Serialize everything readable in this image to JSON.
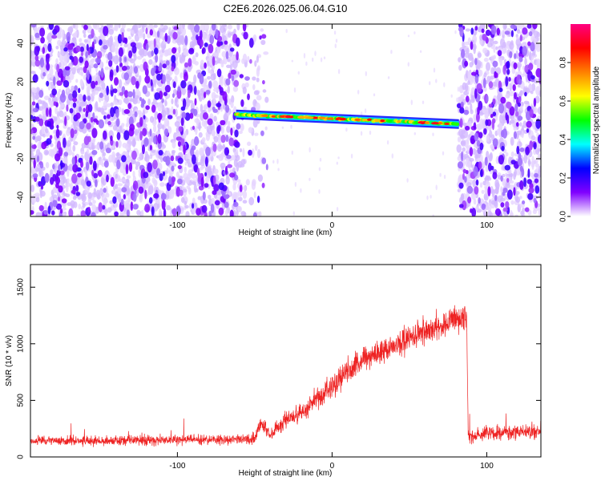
{
  "title": "C2E6.2026.025.06.04.G10",
  "chart_data": [
    {
      "type": "heatmap",
      "xlabel": "Height of straight line (km)",
      "ylabel": "Frequency (Hz)",
      "xlim": [
        -195,
        135
      ],
      "ylim": [
        -50,
        50
      ],
      "xticks": [
        -100,
        0,
        100
      ],
      "xtick_labels": [
        "-100",
        "0",
        "100"
      ],
      "yticks": [
        -40,
        -20,
        0,
        20,
        40
      ],
      "ytick_labels": [
        "-40",
        "-20",
        "0",
        "20",
        "40"
      ],
      "grid": false,
      "regions": [
        {
          "x": [
            -195,
            -61
          ],
          "description_value": "noise",
          "density": 0.85
        },
        {
          "x": [
            -61,
            -42
          ],
          "description_value": "transition",
          "density": 0.25
        },
        {
          "x": [
            82,
            135
          ],
          "description_value": "noise",
          "density": 0.85
        }
      ],
      "signal_band": {
        "x": [
          -62,
          82
        ],
        "freq_start": 3,
        "freq_end": -2
      },
      "colorbar": {
        "label": "Normalized spectral amplitude",
        "range": [
          0,
          1
        ],
        "ticks": [
          0.0,
          0.2,
          0.4,
          0.6,
          0.8
        ],
        "tick_labels": [
          "0.0",
          "0.2",
          "0.4",
          "0.6",
          "0.8"
        ],
        "colors": [
          "#ffffff",
          "#8000ff",
          "#0000ff",
          "#00ffff",
          "#00ff00",
          "#ffff00",
          "#ff8000",
          "#ff0000",
          "#ff0080"
        ]
      }
    },
    {
      "type": "line",
      "xlabel": "Height of straight line (km)",
      "ylabel": "SNR (10 * v/v)",
      "xlim": [
        -195,
        135
      ],
      "ylim": [
        0,
        1700
      ],
      "xticks": [
        -100,
        0,
        100
      ],
      "xtick_labels": [
        "-100",
        "0",
        "100"
      ],
      "yticks": [
        0,
        500,
        1000,
        1500
      ],
      "ytick_labels": [
        "0",
        "500",
        "1000",
        "1500"
      ],
      "color": "#ee2222",
      "envelope": {
        "x": [
          -195,
          -50,
          -46,
          -40,
          -30,
          -20,
          -10,
          0,
          10,
          20,
          30,
          40,
          50,
          60,
          70,
          80,
          87,
          88,
          100,
          115,
          135
        ],
        "mean": [
          140,
          155,
          320,
          190,
          330,
          390,
          520,
          620,
          760,
          860,
          920,
          980,
          1050,
          1110,
          1160,
          1200,
          1240,
          180,
          210,
          220,
          220
        ],
        "spread": [
          70,
          80,
          140,
          90,
          140,
          160,
          180,
          200,
          200,
          200,
          190,
          190,
          200,
          210,
          200,
          210,
          230,
          110,
          120,
          120,
          120
        ]
      }
    }
  ]
}
